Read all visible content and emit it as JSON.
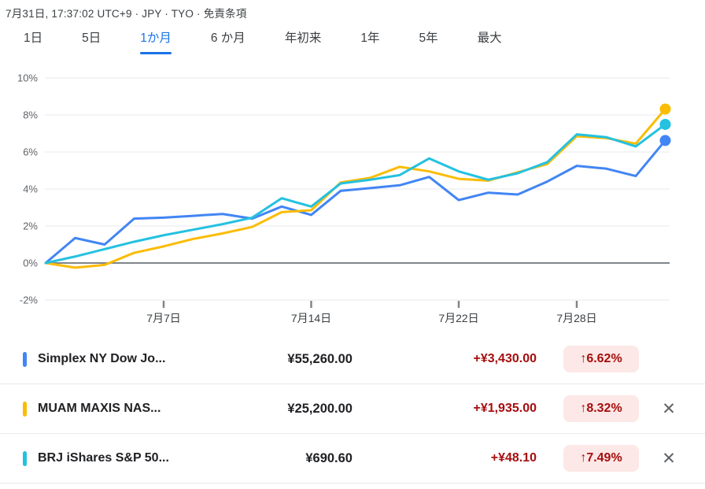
{
  "header": {
    "meta": "7月31日, 17:37:02 UTC+9 · JPY · TYO ·",
    "disclaimer": "免責条項"
  },
  "tabs": [
    {
      "id": "1d",
      "label": "1日",
      "active": false
    },
    {
      "id": "5d",
      "label": "5日",
      "active": false
    },
    {
      "id": "1m",
      "label": "1か月",
      "active": true
    },
    {
      "id": "6m",
      "label": "6 か月",
      "active": false
    },
    {
      "id": "ytd",
      "label": "年初来",
      "active": false
    },
    {
      "id": "1y",
      "label": "1年",
      "active": false
    },
    {
      "id": "5y",
      "label": "5年",
      "active": false
    },
    {
      "id": "max",
      "label": "最大",
      "active": false
    }
  ],
  "chart_data": {
    "type": "line",
    "unit": "%",
    "ylim": [
      -2,
      10
    ],
    "grid": true,
    "y_ticks": [
      10,
      8,
      6,
      4,
      2,
      0,
      -2
    ],
    "x": [
      "7月1日",
      "7月2日",
      "7月3日",
      "7月4日",
      "7月7日",
      "7月8日",
      "7月9日",
      "7月10日",
      "7月11日",
      "7月14日",
      "7月15日",
      "7月16日",
      "7月17日",
      "7月18日",
      "7月22日",
      "7月23日",
      "7月24日",
      "7月25日",
      "7月28日",
      "7月29日",
      "7月30日",
      "7月31日"
    ],
    "x_axis_ticks": [
      {
        "label": "7月7日",
        "index": 4
      },
      {
        "label": "7月14日",
        "index": 9
      },
      {
        "label": "7月22日",
        "index": 14
      },
      {
        "label": "7月28日",
        "index": 18
      }
    ],
    "series": [
      {
        "id": "simplex-ny-dow",
        "name": "Simplex NY Dow Jo...",
        "color": "#4285F4",
        "values": [
          0,
          1.35,
          1.0,
          2.4,
          2.45,
          2.55,
          2.65,
          2.4,
          3.05,
          2.6,
          3.9,
          4.05,
          4.2,
          4.65,
          3.4,
          3.8,
          3.7,
          4.4,
          5.25,
          5.1,
          4.7,
          6.62
        ]
      },
      {
        "id": "muam-maxis-nasdaq",
        "name": "MUAM MAXIS NAS...",
        "color": "#FBBC04",
        "values": [
          0,
          -0.25,
          -0.1,
          0.55,
          0.9,
          1.3,
          1.6,
          1.95,
          2.75,
          2.85,
          4.35,
          4.6,
          5.2,
          4.95,
          4.55,
          4.45,
          4.9,
          5.35,
          6.85,
          6.75,
          6.45,
          8.32
        ]
      },
      {
        "id": "brj-ishares-sp500",
        "name": "BRJ iShares S&P 50...",
        "color": "#24C1E0",
        "values": [
          0,
          0.35,
          0.75,
          1.15,
          1.5,
          1.8,
          2.1,
          2.45,
          3.5,
          3.05,
          4.3,
          4.5,
          4.75,
          5.65,
          4.95,
          4.5,
          4.85,
          5.45,
          6.95,
          6.8,
          6.3,
          7.49
        ]
      }
    ]
  },
  "quotes": [
    {
      "name": "Simplex NY Dow Jo...",
      "color": "#4285F4",
      "price": "¥55,260.00",
      "change": "+¥3,430.00",
      "percent_badge": "↑6.62%",
      "closable": false
    },
    {
      "name": "MUAM MAXIS NAS...",
      "color": "#FBBC04",
      "price": "¥25,200.00",
      "change": "+¥1,935.00",
      "percent_badge": "↑8.32%",
      "closable": true
    },
    {
      "name": "BRJ iShares S&P 50...",
      "color": "#24C1E0",
      "price": "¥690.60",
      "change": "+¥48.10",
      "percent_badge": "↑7.49%",
      "closable": true
    }
  ],
  "icons": {
    "close": "✕"
  },
  "colors": {
    "accent_blue": "#1A73E8",
    "series_blue": "#4285F4",
    "series_yellow": "#FBBC04",
    "series_cyan": "#24C1E0",
    "gain_text_red": "#A50E0E",
    "gain_badge_bg": "#FCE8E6",
    "gridline": "#E8EAED",
    "zero_line": "#80868B",
    "axis_label": "#5F6368",
    "text_primary": "#202124",
    "text_secondary": "#3C4043"
  }
}
